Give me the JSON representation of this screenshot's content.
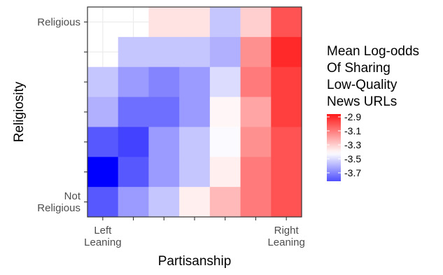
{
  "chart_data": {
    "type": "heatmap",
    "xlabel": "Partisanship",
    "ylabel": "Religiosity",
    "x_tick_labels": [
      {
        "index": 0,
        "lines": [
          "Left",
          "Leaning"
        ]
      },
      {
        "index": 6,
        "lines": [
          "Right",
          "Leaning"
        ]
      }
    ],
    "y_tick_labels": [
      {
        "index": 0,
        "lines": [
          "Religious"
        ]
      },
      {
        "index": 6,
        "lines": [
          "Not",
          "Religious"
        ]
      }
    ],
    "n_cols": 7,
    "n_rows": 7,
    "rows_top_to_bottom": [
      [
        null,
        null,
        -3.35,
        -3.35,
        -3.55,
        -3.3,
        -3.0
      ],
      [
        null,
        -3.55,
        -3.55,
        -3.55,
        -3.6,
        -3.15,
        -2.9
      ],
      [
        -3.55,
        -3.65,
        -3.7,
        -3.65,
        -3.5,
        -3.1,
        -2.95
      ],
      [
        -3.6,
        -3.75,
        -3.75,
        -3.65,
        -3.4,
        -3.2,
        -2.95
      ],
      [
        -3.8,
        -3.85,
        -3.65,
        -3.55,
        -3.43,
        -3.15,
        -3.0
      ],
      [
        -4.0,
        -3.8,
        -3.65,
        -3.55,
        -3.38,
        -3.1,
        -3.0
      ],
      [
        -3.8,
        -3.65,
        -3.55,
        -3.38,
        -3.25,
        -3.1,
        -3.0
      ]
    ],
    "color_scale": {
      "low": "#0000ff",
      "mid": "#ffffff",
      "high": "#ff0000",
      "low_value": -4.0,
      "mid_value": -3.42,
      "high_value": -2.8
    },
    "legend": {
      "title_lines": [
        "Mean Log-odds",
        "Of Sharing",
        "Low-Quality",
        "News URLs"
      ],
      "breaks": [
        "-2.9",
        "-3.1",
        "-3.3",
        "-3.5",
        "-3.7"
      ],
      "break_values": [
        -2.9,
        -3.1,
        -3.3,
        -3.5,
        -3.7
      ],
      "min": -3.82,
      "max": -2.86,
      "placement": "right"
    },
    "panel_background": "#ffffff",
    "grid": true
  }
}
